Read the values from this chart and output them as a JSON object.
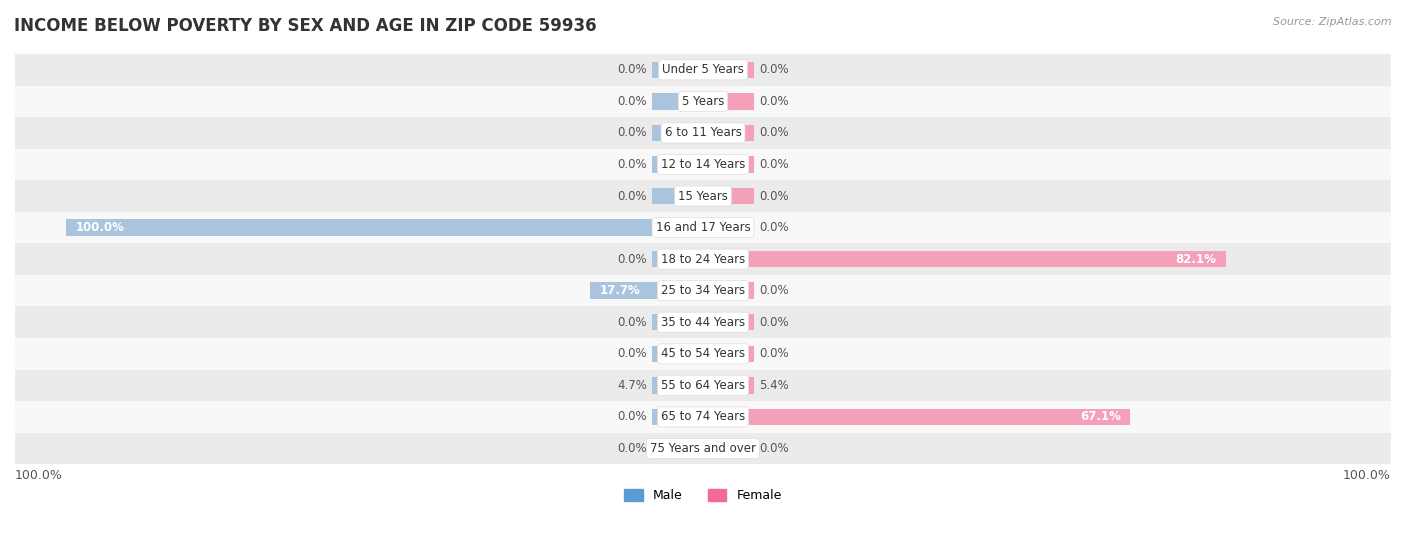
{
  "title": "INCOME BELOW POVERTY BY SEX AND AGE IN ZIP CODE 59936",
  "source": "Source: ZipAtlas.com",
  "categories": [
    "Under 5 Years",
    "5 Years",
    "6 to 11 Years",
    "12 to 14 Years",
    "15 Years",
    "16 and 17 Years",
    "18 to 24 Years",
    "25 to 34 Years",
    "35 to 44 Years",
    "45 to 54 Years",
    "55 to 64 Years",
    "65 to 74 Years",
    "75 Years and over"
  ],
  "male": [
    0.0,
    0.0,
    0.0,
    0.0,
    0.0,
    100.0,
    0.0,
    17.7,
    0.0,
    0.0,
    4.7,
    0.0,
    0.0
  ],
  "female": [
    0.0,
    0.0,
    0.0,
    0.0,
    0.0,
    0.0,
    82.1,
    0.0,
    0.0,
    0.0,
    5.4,
    67.1,
    0.0
  ],
  "male_color": "#aac4de",
  "female_color": "#f4a0b8",
  "male_solid_color": "#5b9bd5",
  "female_solid_color": "#f4699b",
  "row_colors": [
    "#ebebeb",
    "#f8f8f8"
  ],
  "max_val": 100.0,
  "stub_val": 8.0,
  "bar_height": 0.52,
  "title_fontsize": 12,
  "label_fontsize": 8.5,
  "category_fontsize": 8.5,
  "legend_fontsize": 9
}
